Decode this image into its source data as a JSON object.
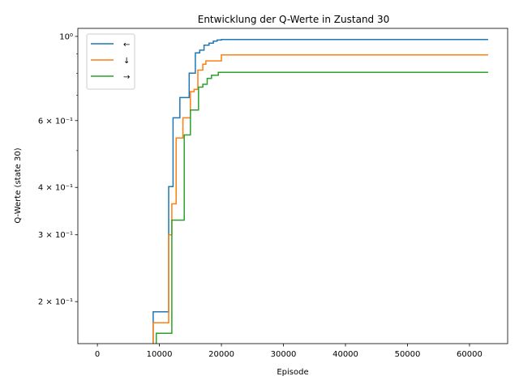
{
  "chart_data": {
    "type": "line",
    "title": "Entwicklung der Q-Werte in Zustand 30",
    "xlabel": "Episode",
    "ylabel": "Q-Werte (state 30)",
    "xlim": [
      -3150,
      66150
    ],
    "ylim": [
      0.155,
      1.05
    ],
    "yscale": "log",
    "grid": false,
    "legend_position": "top-left",
    "x_ticks": [
      {
        "value": 0,
        "label": "0"
      },
      {
        "value": 10000,
        "label": "10000"
      },
      {
        "value": 20000,
        "label": "20000"
      },
      {
        "value": 30000,
        "label": "30000"
      },
      {
        "value": 40000,
        "label": "40000"
      },
      {
        "value": 50000,
        "label": "50000"
      },
      {
        "value": 60000,
        "label": "60000"
      }
    ],
    "y_ticks_major": [
      {
        "value": 0.2,
        "label": "2 × 10⁻¹"
      },
      {
        "value": 0.3,
        "label": "3 × 10⁻¹"
      },
      {
        "value": 0.4,
        "label": "4 × 10⁻¹"
      },
      {
        "value": 0.6,
        "label": "6 × 10⁻¹"
      },
      {
        "value": 1.0,
        "label": "10⁰"
      }
    ],
    "y_ticks_minor": [
      0.5,
      0.7,
      0.8,
      0.9
    ],
    "series": [
      {
        "name": "←",
        "color": "#1f77b4",
        "points": [
          [
            0,
            0.0
          ],
          [
            9000,
            0.0
          ],
          [
            9000,
            0.188
          ],
          [
            11500,
            0.188
          ],
          [
            11500,
            0.402
          ],
          [
            12200,
            0.402
          ],
          [
            12200,
            0.61
          ],
          [
            13300,
            0.61
          ],
          [
            13300,
            0.69
          ],
          [
            14800,
            0.69
          ],
          [
            14800,
            0.8
          ],
          [
            15800,
            0.8
          ],
          [
            15800,
            0.905
          ],
          [
            16500,
            0.905
          ],
          [
            16500,
            0.92
          ],
          [
            17200,
            0.92
          ],
          [
            17200,
            0.948
          ],
          [
            18000,
            0.948
          ],
          [
            18000,
            0.96
          ],
          [
            18700,
            0.96
          ],
          [
            18700,
            0.972
          ],
          [
            19300,
            0.972
          ],
          [
            19300,
            0.978
          ],
          [
            20000,
            0.978
          ],
          [
            20000,
            0.981
          ],
          [
            63000,
            0.981
          ]
        ]
      },
      {
        "name": "↓",
        "color": "#ff7f0e",
        "points": [
          [
            0,
            0.0
          ],
          [
            9000,
            0.0
          ],
          [
            9000,
            0.176
          ],
          [
            11500,
            0.176
          ],
          [
            11500,
            0.3
          ],
          [
            12000,
            0.3
          ],
          [
            12000,
            0.362
          ],
          [
            12700,
            0.362
          ],
          [
            12700,
            0.54
          ],
          [
            13800,
            0.54
          ],
          [
            13800,
            0.61
          ],
          [
            15000,
            0.61
          ],
          [
            15000,
            0.715
          ],
          [
            15600,
            0.715
          ],
          [
            15600,
            0.725
          ],
          [
            16200,
            0.725
          ],
          [
            16200,
            0.815
          ],
          [
            17000,
            0.815
          ],
          [
            17000,
            0.845
          ],
          [
            17500,
            0.845
          ],
          [
            17500,
            0.862
          ],
          [
            20000,
            0.862
          ],
          [
            20000,
            0.894
          ],
          [
            63000,
            0.894
          ]
        ]
      },
      {
        "name": "→",
        "color": "#2ca02c",
        "points": [
          [
            0,
            0.0
          ],
          [
            9500,
            0.0
          ],
          [
            9500,
            0.165
          ],
          [
            12000,
            0.165
          ],
          [
            12000,
            0.328
          ],
          [
            14000,
            0.328
          ],
          [
            14000,
            0.55
          ],
          [
            15000,
            0.55
          ],
          [
            15000,
            0.64
          ],
          [
            16300,
            0.64
          ],
          [
            16300,
            0.735
          ],
          [
            17000,
            0.735
          ],
          [
            17000,
            0.748
          ],
          [
            17700,
            0.748
          ],
          [
            17700,
            0.775
          ],
          [
            18400,
            0.775
          ],
          [
            18400,
            0.79
          ],
          [
            19500,
            0.79
          ],
          [
            19500,
            0.804
          ],
          [
            63000,
            0.804
          ]
        ]
      }
    ]
  }
}
